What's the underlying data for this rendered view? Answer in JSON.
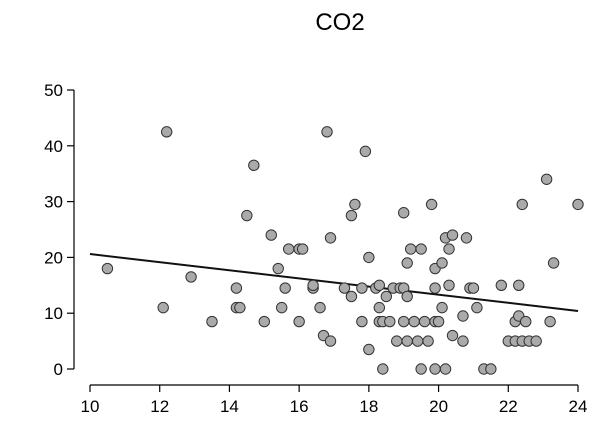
{
  "chart_data": {
    "type": "scatter",
    "title": "CO2",
    "xlabel": "",
    "ylabel": "",
    "xlim": [
      10,
      24
    ],
    "ylim": [
      0,
      50
    ],
    "x_ticks": [
      "10",
      "12",
      "14",
      "16",
      "18",
      "20",
      "22",
      "24"
    ],
    "y_ticks": [
      "0",
      "10",
      "20",
      "30",
      "40",
      "50"
    ],
    "grid": false,
    "point_color": "#aaaaaa",
    "point_stroke": "#333333",
    "trend_line": {
      "x": [
        10,
        24
      ],
      "y": [
        20.6,
        10.4
      ]
    },
    "points": [
      {
        "x": 10.5,
        "y": 18
      },
      {
        "x": 12.1,
        "y": 11
      },
      {
        "x": 12.2,
        "y": 42.5
      },
      {
        "x": 12.9,
        "y": 16.5
      },
      {
        "x": 13.5,
        "y": 8.5
      },
      {
        "x": 14.2,
        "y": 14.5
      },
      {
        "x": 14.2,
        "y": 11
      },
      {
        "x": 14.3,
        "y": 11
      },
      {
        "x": 14.5,
        "y": 27.5
      },
      {
        "x": 14.7,
        "y": 36.5
      },
      {
        "x": 15.0,
        "y": 8.5
      },
      {
        "x": 15.2,
        "y": 24
      },
      {
        "x": 15.4,
        "y": 18
      },
      {
        "x": 15.5,
        "y": 11
      },
      {
        "x": 15.6,
        "y": 14.5
      },
      {
        "x": 15.7,
        "y": 21.5
      },
      {
        "x": 16.0,
        "y": 21.5
      },
      {
        "x": 16.0,
        "y": 8.5
      },
      {
        "x": 16.1,
        "y": 21.5
      },
      {
        "x": 16.4,
        "y": 14.5
      },
      {
        "x": 16.4,
        "y": 15
      },
      {
        "x": 16.6,
        "y": 11
      },
      {
        "x": 16.7,
        "y": 6
      },
      {
        "x": 16.8,
        "y": 42.5
      },
      {
        "x": 16.9,
        "y": 23.5
      },
      {
        "x": 16.9,
        "y": 5
      },
      {
        "x": 17.3,
        "y": 14.5
      },
      {
        "x": 17.5,
        "y": 27.5
      },
      {
        "x": 17.5,
        "y": 13
      },
      {
        "x": 17.6,
        "y": 29.5
      },
      {
        "x": 17.8,
        "y": 8.5
      },
      {
        "x": 17.8,
        "y": 14.5
      },
      {
        "x": 17.9,
        "y": 39
      },
      {
        "x": 18.0,
        "y": 20
      },
      {
        "x": 18.0,
        "y": 3.5
      },
      {
        "x": 18.2,
        "y": 14.5
      },
      {
        "x": 18.3,
        "y": 15
      },
      {
        "x": 18.3,
        "y": 11
      },
      {
        "x": 18.3,
        "y": 8.5
      },
      {
        "x": 18.4,
        "y": 8.5
      },
      {
        "x": 18.4,
        "y": 0
      },
      {
        "x": 18.5,
        "y": 13
      },
      {
        "x": 18.6,
        "y": 8.5
      },
      {
        "x": 18.7,
        "y": 14.5
      },
      {
        "x": 18.8,
        "y": 5
      },
      {
        "x": 18.9,
        "y": 14.5
      },
      {
        "x": 19.0,
        "y": 28
      },
      {
        "x": 19.0,
        "y": 14.5
      },
      {
        "x": 19.0,
        "y": 8.5
      },
      {
        "x": 19.1,
        "y": 19
      },
      {
        "x": 19.1,
        "y": 13
      },
      {
        "x": 19.1,
        "y": 5
      },
      {
        "x": 19.2,
        "y": 21.5
      },
      {
        "x": 19.3,
        "y": 8.5
      },
      {
        "x": 19.4,
        "y": 5
      },
      {
        "x": 19.5,
        "y": 21.5
      },
      {
        "x": 19.5,
        "y": 0
      },
      {
        "x": 19.6,
        "y": 8.5
      },
      {
        "x": 19.7,
        "y": 5
      },
      {
        "x": 19.8,
        "y": 29.5
      },
      {
        "x": 19.9,
        "y": 18
      },
      {
        "x": 19.9,
        "y": 14.5
      },
      {
        "x": 19.9,
        "y": 8.5
      },
      {
        "x": 19.9,
        "y": 0
      },
      {
        "x": 20.0,
        "y": 8.5
      },
      {
        "x": 20.1,
        "y": 19
      },
      {
        "x": 20.1,
        "y": 11
      },
      {
        "x": 20.2,
        "y": 0
      },
      {
        "x": 20.2,
        "y": 23.5
      },
      {
        "x": 20.3,
        "y": 21.5
      },
      {
        "x": 20.3,
        "y": 15
      },
      {
        "x": 20.4,
        "y": 24
      },
      {
        "x": 20.4,
        "y": 6
      },
      {
        "x": 20.7,
        "y": 9.5
      },
      {
        "x": 20.7,
        "y": 5
      },
      {
        "x": 20.8,
        "y": 23.5
      },
      {
        "x": 20.9,
        "y": 14.5
      },
      {
        "x": 21.0,
        "y": 14.5
      },
      {
        "x": 21.1,
        "y": 11
      },
      {
        "x": 21.3,
        "y": 0
      },
      {
        "x": 21.5,
        "y": 0
      },
      {
        "x": 21.8,
        "y": 15
      },
      {
        "x": 22.0,
        "y": 5
      },
      {
        "x": 22.2,
        "y": 8.5
      },
      {
        "x": 22.2,
        "y": 5
      },
      {
        "x": 22.3,
        "y": 15
      },
      {
        "x": 22.3,
        "y": 9.5
      },
      {
        "x": 22.4,
        "y": 29.5
      },
      {
        "x": 22.4,
        "y": 5
      },
      {
        "x": 22.5,
        "y": 8.5
      },
      {
        "x": 22.6,
        "y": 5
      },
      {
        "x": 22.8,
        "y": 5
      },
      {
        "x": 23.1,
        "y": 34
      },
      {
        "x": 23.2,
        "y": 8.5
      },
      {
        "x": 23.3,
        "y": 19
      },
      {
        "x": 24.0,
        "y": 29.5
      }
    ]
  }
}
